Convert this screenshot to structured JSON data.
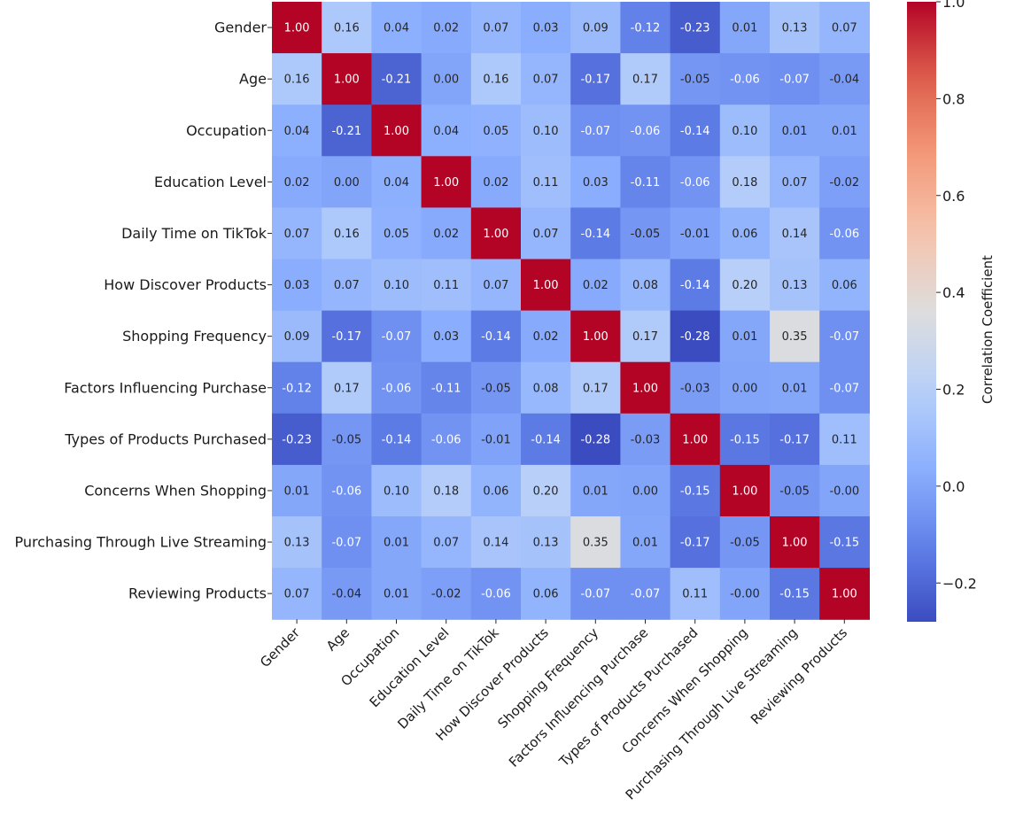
{
  "chart_data": {
    "type": "heatmap",
    "title": "",
    "colormap": "coolwarm",
    "vmin": -0.28,
    "vmax": 1.0,
    "labels": [
      "Gender",
      "Age",
      "Occupation",
      "Education Level",
      "Daily Time on TikTok",
      "How Discover Products",
      "Shopping Frequency",
      "Factors Influencing Purchase",
      "Types of Products Purchased",
      "Concerns When Shopping",
      "Purchasing Through Live Streaming",
      "Reviewing Products"
    ],
    "matrix": [
      [
        1.0,
        0.16,
        0.04,
        0.02,
        0.07,
        0.03,
        0.09,
        -0.12,
        -0.23,
        0.01,
        0.13,
        0.07
      ],
      [
        0.16,
        1.0,
        -0.21,
        0.0,
        0.16,
        0.07,
        -0.17,
        0.17,
        -0.05,
        -0.06,
        -0.07,
        -0.04
      ],
      [
        0.04,
        -0.21,
        1.0,
        0.04,
        0.05,
        0.1,
        -0.07,
        -0.06,
        -0.14,
        0.1,
        0.01,
        0.01
      ],
      [
        0.02,
        0.0,
        0.04,
        1.0,
        0.02,
        0.11,
        0.03,
        -0.11,
        -0.06,
        0.18,
        0.07,
        -0.02
      ],
      [
        0.07,
        0.16,
        0.05,
        0.02,
        1.0,
        0.07,
        -0.14,
        -0.05,
        -0.01,
        0.06,
        0.14,
        -0.06
      ],
      [
        0.03,
        0.07,
        0.1,
        0.11,
        0.07,
        1.0,
        0.02,
        0.08,
        -0.14,
        0.2,
        0.13,
        0.06
      ],
      [
        0.09,
        -0.17,
        -0.07,
        0.03,
        -0.14,
        0.02,
        1.0,
        0.17,
        -0.28,
        0.01,
        0.35,
        -0.07
      ],
      [
        -0.12,
        0.17,
        -0.06,
        -0.11,
        -0.05,
        0.08,
        0.17,
        1.0,
        -0.03,
        0.0,
        0.01,
        -0.07
      ],
      [
        -0.23,
        -0.05,
        -0.14,
        -0.06,
        -0.01,
        -0.14,
        -0.28,
        -0.03,
        1.0,
        -0.15,
        -0.17,
        0.11
      ],
      [
        0.01,
        -0.06,
        0.1,
        0.18,
        0.06,
        0.2,
        0.01,
        0.0,
        -0.15,
        1.0,
        -0.05,
        -0.0
      ],
      [
        0.13,
        -0.07,
        0.01,
        0.07,
        0.14,
        0.13,
        0.35,
        0.01,
        -0.17,
        -0.05,
        1.0,
        -0.15
      ],
      [
        0.07,
        -0.04,
        0.01,
        -0.02,
        -0.06,
        0.06,
        -0.07,
        -0.07,
        0.11,
        -0.0,
        -0.15,
        1.0
      ]
    ],
    "value_labels": [
      [
        "1.00",
        "0.16",
        "0.04",
        "0.02",
        "0.07",
        "0.03",
        "0.09",
        "-0.12",
        "-0.23",
        "0.01",
        "0.13",
        "0.07"
      ],
      [
        "0.16",
        "1.00",
        "-0.21",
        "0.00",
        "0.16",
        "0.07",
        "-0.17",
        "0.17",
        "-0.05",
        "-0.06",
        "-0.07",
        "-0.04"
      ],
      [
        "0.04",
        "-0.21",
        "1.00",
        "0.04",
        "0.05",
        "0.10",
        "-0.07",
        "-0.06",
        "-0.14",
        "0.10",
        "0.01",
        "0.01"
      ],
      [
        "0.02",
        "0.00",
        "0.04",
        "1.00",
        "0.02",
        "0.11",
        "0.03",
        "-0.11",
        "-0.06",
        "0.18",
        "0.07",
        "-0.02"
      ],
      [
        "0.07",
        "0.16",
        "0.05",
        "0.02",
        "1.00",
        "0.07",
        "-0.14",
        "-0.05",
        "-0.01",
        "0.06",
        "0.14",
        "-0.06"
      ],
      [
        "0.03",
        "0.07",
        "0.10",
        "0.11",
        "0.07",
        "1.00",
        "0.02",
        "0.08",
        "-0.14",
        "0.20",
        "0.13",
        "0.06"
      ],
      [
        "0.09",
        "-0.17",
        "-0.07",
        "0.03",
        "-0.14",
        "0.02",
        "1.00",
        "0.17",
        "-0.28",
        "0.01",
        "0.35",
        "-0.07"
      ],
      [
        "-0.12",
        "0.17",
        "-0.06",
        "-0.11",
        "-0.05",
        "0.08",
        "0.17",
        "1.00",
        "-0.03",
        "0.00",
        "0.01",
        "-0.07"
      ],
      [
        "-0.23",
        "-0.05",
        "-0.14",
        "-0.06",
        "-0.01",
        "-0.14",
        "-0.28",
        "-0.03",
        "1.00",
        "-0.15",
        "-0.17",
        "0.11"
      ],
      [
        "0.01",
        "-0.06",
        "0.10",
        "0.18",
        "0.06",
        "0.20",
        "0.01",
        "0.00",
        "-0.15",
        "1.00",
        "-0.05",
        "-0.00"
      ],
      [
        "0.13",
        "-0.07",
        "0.01",
        "0.07",
        "0.14",
        "0.13",
        "0.35",
        "0.01",
        "-0.17",
        "-0.05",
        "1.00",
        "-0.15"
      ],
      [
        "0.07",
        "-0.04",
        "0.01",
        "-0.02",
        "-0.06",
        "0.06",
        "-0.07",
        "-0.07",
        "0.11",
        "-0.00",
        "-0.15",
        "1.00"
      ]
    ],
    "colorbar": {
      "label": "Correlation Coefficient",
      "ticks": [
        1.0,
        0.8,
        0.6,
        0.4,
        0.2,
        0.0,
        -0.2
      ],
      "tick_labels": [
        "1.0",
        "0.8",
        "0.6",
        "0.4",
        "0.2",
        "0.0",
        "−0.2"
      ]
    }
  }
}
